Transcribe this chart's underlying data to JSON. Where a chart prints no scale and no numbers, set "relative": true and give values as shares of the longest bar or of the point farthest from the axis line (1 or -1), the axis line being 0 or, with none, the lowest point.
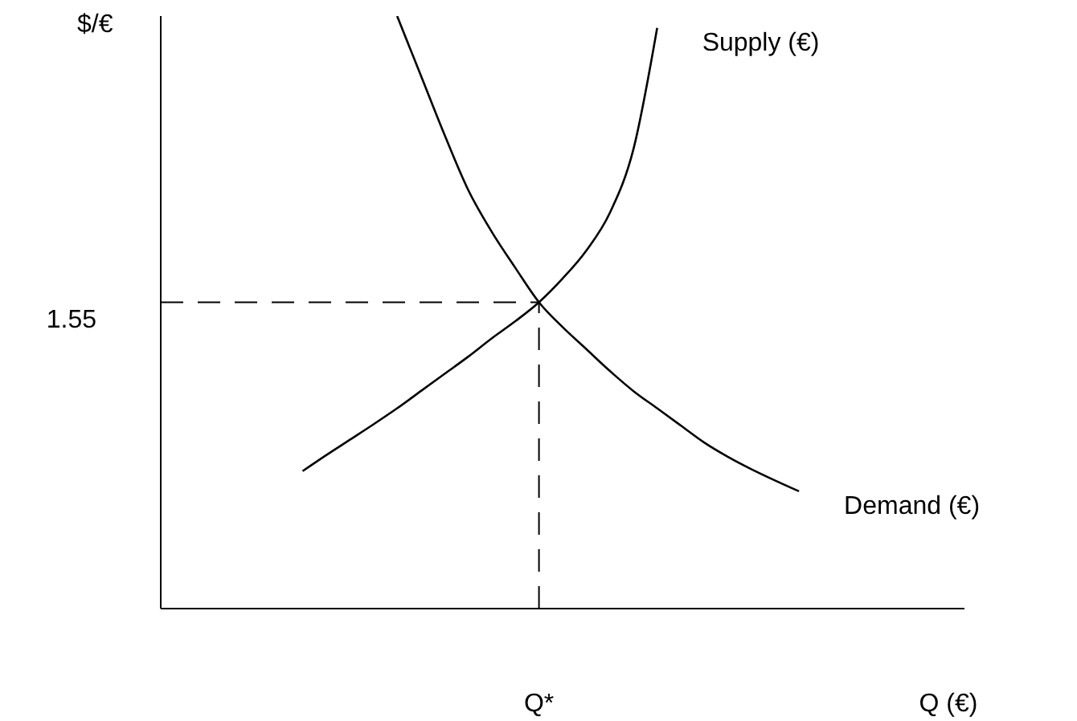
{
  "chart_data": {
    "type": "line",
    "relative": true,
    "xlabel": "Q (€)",
    "ylabel": "$/€",
    "categories": [
      null,
      null,
      null,
      null,
      null,
      null,
      null,
      null,
      null,
      null,
      null,
      null,
      null,
      null,
      null,
      null,
      null,
      null,
      null,
      null,
      null,
      null,
      null,
      null,
      null,
      null,
      null,
      null,
      null,
      null,
      null,
      null,
      null,
      null,
      null
    ],
    "series": [
      {
        "name": "Supply (€)",
        "color": "#000000",
        "values": [
          null,
          null,
          null,
          null,
          null,
          null,
          0.232,
          0.259,
          0.285,
          0.311,
          0.338,
          0.367,
          0.396,
          0.425,
          0.456,
          0.485,
          0.517,
          0.557,
          0.604,
          0.668,
          0.776,
          0.98,
          null,
          null,
          null,
          null,
          null,
          null,
          null,
          null,
          null,
          null,
          null,
          null,
          null
        ]
      },
      {
        "name": "Demand (€)",
        "color": "#000000",
        "values": [
          null,
          null,
          null,
          null,
          null,
          null,
          null,
          null,
          null,
          null,
          1,
          0.9,
          0.8,
          0.707,
          0.636,
          0.575,
          0.517,
          0.475,
          0.438,
          0.401,
          0.367,
          0.338,
          0.309,
          0.28,
          0.256,
          0.235,
          0.216,
          0.198,
          null,
          null,
          null,
          null,
          null,
          null,
          null
        ]
      }
    ],
    "annotations": [
      "1.55",
      "Q*"
    ],
    "ref_lines": [
      {
        "axis": "y",
        "value": 0.517,
        "line_style": "dashed",
        "color": "#000000"
      }
    ],
    "marker": "none",
    "legend": false,
    "grid": false
  }
}
